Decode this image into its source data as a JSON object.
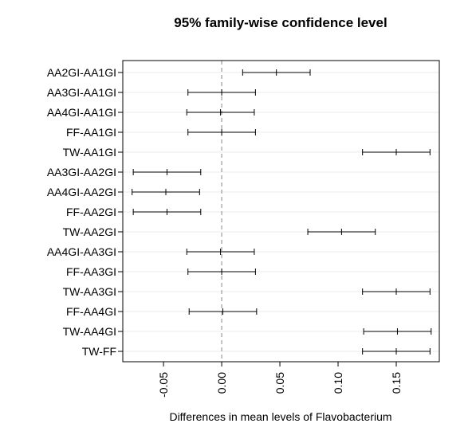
{
  "chart_data": {
    "type": "interval",
    "title": "95% family-wise confidence level",
    "xlabel": "Differences in mean levels of Flavobacterium",
    "ylabel": "",
    "xlim": [
      -0.085,
      0.187
    ],
    "xticks": [
      -0.05,
      0.0,
      0.05,
      0.1,
      0.15
    ],
    "xtick_labels": [
      "-0.05",
      "0.00",
      "0.05",
      "0.10",
      "0.15"
    ],
    "reference_line": 0,
    "grid": "horizontal",
    "comparisons": [
      {
        "label": "AA2GI-AA1GI",
        "lwr": 0.018,
        "diff": 0.047,
        "upr": 0.076
      },
      {
        "label": "AA3GI-AA1GI",
        "lwr": -0.029,
        "diff": 0.0,
        "upr": 0.029
      },
      {
        "label": "AA4GI-AA1GI",
        "lwr": -0.03,
        "diff": -0.001,
        "upr": 0.028
      },
      {
        "label": "FF-AA1GI",
        "lwr": -0.029,
        "diff": 0.0,
        "upr": 0.029
      },
      {
        "label": "TW-AA1GI",
        "lwr": 0.121,
        "diff": 0.15,
        "upr": 0.179
      },
      {
        "label": "AA3GI-AA2GI",
        "lwr": -0.076,
        "diff": -0.047,
        "upr": -0.018
      },
      {
        "label": "AA4GI-AA2GI",
        "lwr": -0.077,
        "diff": -0.048,
        "upr": -0.019
      },
      {
        "label": "FF-AA2GI",
        "lwr": -0.076,
        "diff": -0.047,
        "upr": -0.018
      },
      {
        "label": "TW-AA2GI",
        "lwr": 0.074,
        "diff": 0.103,
        "upr": 0.132
      },
      {
        "label": "AA4GI-AA3GI",
        "lwr": -0.03,
        "diff": -0.001,
        "upr": 0.028
      },
      {
        "label": "FF-AA3GI",
        "lwr": -0.029,
        "diff": 0.0,
        "upr": 0.029
      },
      {
        "label": "TW-AA3GI",
        "lwr": 0.121,
        "diff": 0.15,
        "upr": 0.179
      },
      {
        "label": "FF-AA4GI",
        "lwr": -0.028,
        "diff": 0.001,
        "upr": 0.03
      },
      {
        "label": "TW-AA4GI",
        "lwr": 0.122,
        "diff": 0.151,
        "upr": 0.18
      },
      {
        "label": "TW-FF",
        "lwr": 0.121,
        "diff": 0.15,
        "upr": 0.179
      }
    ]
  }
}
